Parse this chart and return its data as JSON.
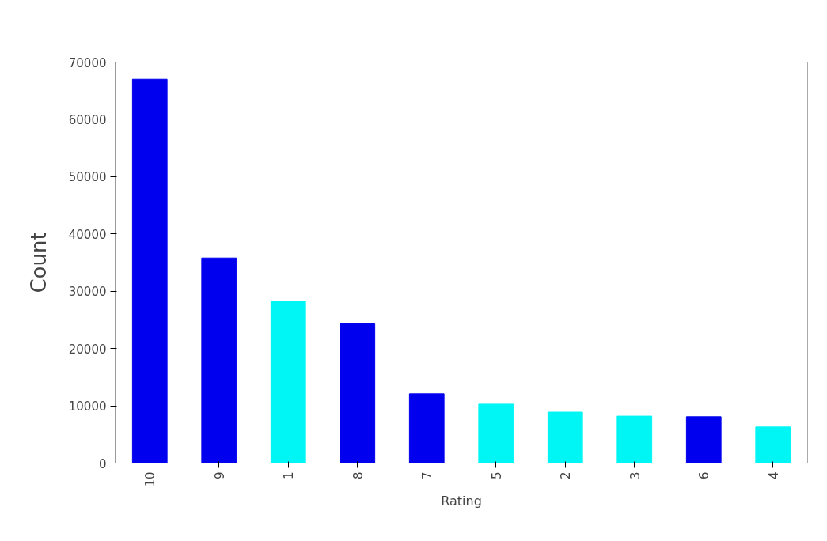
{
  "chart_data": {
    "type": "bar",
    "xlabel": "Rating",
    "ylabel": "Count",
    "categories": [
      "10",
      "9",
      "1",
      "8",
      "7",
      "5",
      "2",
      "3",
      "6",
      "4"
    ],
    "values": [
      67000,
      35800,
      28300,
      24300,
      12100,
      10300,
      8900,
      8200,
      8100,
      6300
    ],
    "colors": [
      "#0000ee",
      "#0000ee",
      "#00f5f5",
      "#0000ee",
      "#0000ee",
      "#00f5f5",
      "#00f5f5",
      "#00f5f5",
      "#0000ee",
      "#00f5f5"
    ],
    "ylim": [
      0,
      70000
    ],
    "yticks": [
      0,
      10000,
      20000,
      30000,
      40000,
      50000,
      60000,
      70000
    ],
    "grid": false
  }
}
